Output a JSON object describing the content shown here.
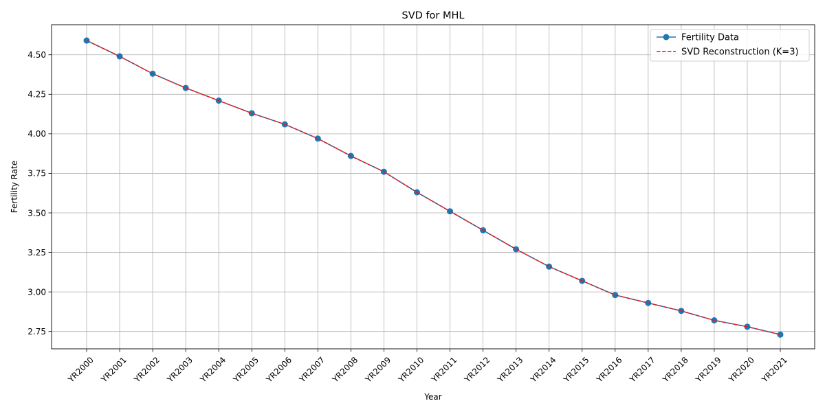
{
  "chart_data": {
    "type": "line",
    "title": "SVD for MHL",
    "xlabel": "Year",
    "ylabel": "Fertility Rate",
    "categories": [
      "YR2000",
      "YR2001",
      "YR2002",
      "YR2003",
      "YR2004",
      "YR2005",
      "YR2006",
      "YR2007",
      "YR2008",
      "YR2009",
      "YR2010",
      "YR2011",
      "YR2012",
      "YR2013",
      "YR2014",
      "YR2015",
      "YR2016",
      "YR2017",
      "YR2018",
      "YR2019",
      "YR2020",
      "YR2021"
    ],
    "ylim": [
      2.64,
      4.69
    ],
    "yticks": [
      2.75,
      3.0,
      3.25,
      3.5,
      3.75,
      4.0,
      4.25,
      4.5
    ],
    "ytick_labels": [
      "2.75",
      "3.00",
      "3.25",
      "3.50",
      "3.75",
      "4.00",
      "4.25",
      "4.50"
    ],
    "grid": true,
    "legend_position": "top-right",
    "series": [
      {
        "name": "Fertility Data",
        "color": "#1f77b4",
        "style": "solid-line-circle-markers",
        "values": [
          4.59,
          4.49,
          4.38,
          4.29,
          4.21,
          4.13,
          4.06,
          3.97,
          3.86,
          3.76,
          3.63,
          3.51,
          3.39,
          3.27,
          3.16,
          3.07,
          2.98,
          2.93,
          2.88,
          2.82,
          2.78,
          2.73
        ]
      },
      {
        "name": "SVD Reconstruction (K=3)",
        "color": "#e41a1c",
        "style": "dashed-line",
        "values": [
          4.59,
          4.49,
          4.38,
          4.29,
          4.21,
          4.13,
          4.06,
          3.97,
          3.86,
          3.76,
          3.63,
          3.51,
          3.39,
          3.27,
          3.16,
          3.07,
          2.98,
          2.93,
          2.88,
          2.82,
          2.78,
          2.73
        ]
      }
    ]
  }
}
